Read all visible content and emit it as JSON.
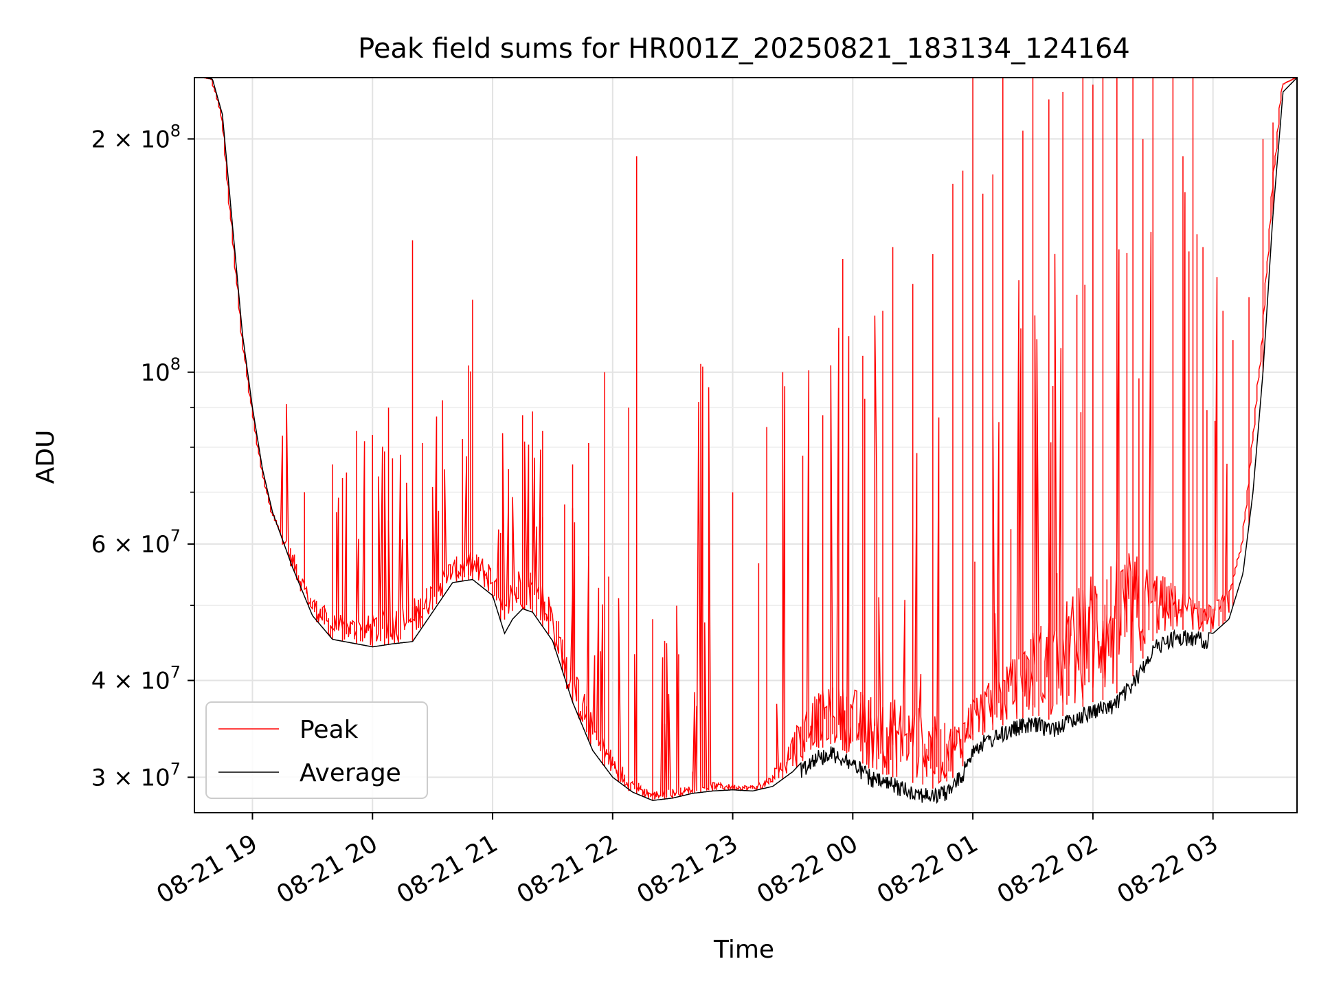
{
  "chart_data": {
    "type": "line",
    "title": "Peak field sums for HR001Z_20250821_183134_124164",
    "xlabel": "Time",
    "ylabel": "ADU",
    "yscale": "log",
    "grid": true,
    "legend_position": "lower-left",
    "xlim": [
      "2025-08-21 18:31",
      "2025-08-22 03:42"
    ],
    "ylim": [
      27000000,
      240000000
    ],
    "x_ticks": [
      {
        "value": "2025-08-21 19:00",
        "label": "08-21 19"
      },
      {
        "value": "2025-08-21 20:00",
        "label": "08-21 20"
      },
      {
        "value": "2025-08-21 21:00",
        "label": "08-21 21"
      },
      {
        "value": "2025-08-21 22:00",
        "label": "08-21 22"
      },
      {
        "value": "2025-08-21 23:00",
        "label": "08-21 23"
      },
      {
        "value": "2025-08-22 00:00",
        "label": "08-22 00"
      },
      {
        "value": "2025-08-22 01:00",
        "label": "08-22 01"
      },
      {
        "value": "2025-08-22 02:00",
        "label": "08-22 02"
      },
      {
        "value": "2025-08-22 03:00",
        "label": "08-22 03"
      }
    ],
    "y_major_ticks": [
      {
        "value": 30000000,
        "mantissa": "3",
        "exponent": "7"
      },
      {
        "value": 40000000,
        "mantissa": "4",
        "exponent": "7"
      },
      {
        "value": 60000000,
        "mantissa": "6",
        "exponent": "7"
      },
      {
        "value": 100000000,
        "mantissa": "",
        "exponent": "8"
      },
      {
        "value": 200000000,
        "mantissa": "2",
        "exponent": "8"
      }
    ],
    "y_minor_ticks": [
      50000000,
      70000000,
      80000000,
      90000000
    ],
    "series": [
      {
        "name": "Average",
        "color": "#000000",
        "x": [
          "2025-08-21 18:31",
          "2025-08-21 18:36",
          "2025-08-21 18:40",
          "2025-08-21 18:45",
          "2025-08-21 18:50",
          "2025-08-21 18:55",
          "2025-08-21 19:00",
          "2025-08-21 19:05",
          "2025-08-21 19:10",
          "2025-08-21 19:20",
          "2025-08-21 19:30",
          "2025-08-21 19:40",
          "2025-08-21 19:50",
          "2025-08-21 20:00",
          "2025-08-21 20:10",
          "2025-08-21 20:20",
          "2025-08-21 20:30",
          "2025-08-21 20:40",
          "2025-08-21 20:50",
          "2025-08-21 21:00",
          "2025-08-21 21:06",
          "2025-08-21 21:10",
          "2025-08-21 21:15",
          "2025-08-21 21:20",
          "2025-08-21 21:30",
          "2025-08-21 21:40",
          "2025-08-21 21:50",
          "2025-08-21 22:00",
          "2025-08-21 22:10",
          "2025-08-21 22:20",
          "2025-08-21 22:30",
          "2025-08-21 22:40",
          "2025-08-21 22:50",
          "2025-08-21 23:00",
          "2025-08-21 23:10",
          "2025-08-21 23:20",
          "2025-08-21 23:30",
          "2025-08-21 23:40",
          "2025-08-21 23:50",
          "2025-08-22 00:00",
          "2025-08-22 00:10",
          "2025-08-22 00:20",
          "2025-08-22 00:30",
          "2025-08-22 00:40",
          "2025-08-22 00:48",
          "2025-08-22 00:55",
          "2025-08-22 01:00",
          "2025-08-22 01:10",
          "2025-08-22 01:20",
          "2025-08-22 01:30",
          "2025-08-22 01:40",
          "2025-08-22 01:50",
          "2025-08-22 02:00",
          "2025-08-22 02:10",
          "2025-08-22 02:20",
          "2025-08-22 02:30",
          "2025-08-22 02:40",
          "2025-08-22 02:50",
          "2025-08-22 03:00",
          "2025-08-22 03:08",
          "2025-08-22 03:15",
          "2025-08-22 03:20",
          "2025-08-22 03:25",
          "2025-08-22 03:30",
          "2025-08-22 03:35",
          "2025-08-22 03:42"
        ],
        "values": [
          240000000,
          240000000,
          239000000,
          215000000,
          155000000,
          112000000,
          90000000,
          75000000,
          66000000,
          56000000,
          48500000,
          45200000,
          44700000,
          44200000,
          44600000,
          44900000,
          49000000,
          53500000,
          54000000,
          51500000,
          46000000,
          48000000,
          49500000,
          49000000,
          45000000,
          37500000,
          32500000,
          30000000,
          28700000,
          28000000,
          28200000,
          28600000,
          28800000,
          28900000,
          28800000,
          29200000,
          30500000,
          32500000,
          33000000,
          32000000,
          30500000,
          30000000,
          29500000,
          29000000,
          29500000,
          31000000,
          33500000,
          34500000,
          35500000,
          36000000,
          35500000,
          36500000,
          37500000,
          38000000,
          40500000,
          45000000,
          46500000,
          46500000,
          46000000,
          48000000,
          55000000,
          70000000,
          100000000,
          160000000,
          230000000,
          240000000
        ]
      },
      {
        "name": "Peak",
        "color": "#ff0000",
        "x": [
          "2025-08-21 18:31",
          "2025-08-21 18:36",
          "2025-08-21 18:40",
          "2025-08-21 18:45",
          "2025-08-21 18:50",
          "2025-08-21 18:55",
          "2025-08-21 19:00",
          "2025-08-21 19:05",
          "2025-08-21 19:10",
          "2025-08-21 19:20",
          "2025-08-21 19:30",
          "2025-08-21 19:40",
          "2025-08-21 19:50",
          "2025-08-21 20:00",
          "2025-08-21 20:10",
          "2025-08-21 20:20",
          "2025-08-21 20:30",
          "2025-08-21 20:40",
          "2025-08-21 20:50",
          "2025-08-21 21:00",
          "2025-08-21 21:06",
          "2025-08-21 21:10",
          "2025-08-21 21:15",
          "2025-08-21 21:20",
          "2025-08-21 21:30",
          "2025-08-21 21:40",
          "2025-08-21 21:50",
          "2025-08-21 22:00",
          "2025-08-21 22:10",
          "2025-08-21 22:20",
          "2025-08-21 22:30",
          "2025-08-21 22:40",
          "2025-08-21 22:50",
          "2025-08-21 23:00",
          "2025-08-21 23:10",
          "2025-08-21 23:20",
          "2025-08-21 23:30",
          "2025-08-21 23:40",
          "2025-08-21 23:50",
          "2025-08-22 00:00",
          "2025-08-22 00:10",
          "2025-08-22 00:20",
          "2025-08-22 00:30",
          "2025-08-22 00:40",
          "2025-08-22 00:48",
          "2025-08-22 00:55",
          "2025-08-22 01:00",
          "2025-08-22 01:10",
          "2025-08-22 01:20",
          "2025-08-22 01:30",
          "2025-08-22 01:40",
          "2025-08-22 01:50",
          "2025-08-22 02:00",
          "2025-08-22 02:10",
          "2025-08-22 02:20",
          "2025-08-22 02:30",
          "2025-08-22 02:40",
          "2025-08-22 02:50",
          "2025-08-22 03:00",
          "2025-08-22 03:08",
          "2025-08-22 03:15",
          "2025-08-22 03:20",
          "2025-08-22 03:25",
          "2025-08-22 03:30",
          "2025-08-22 03:35",
          "2025-08-22 03:42"
        ],
        "values": [
          240000000,
          240000000,
          239000000,
          215000000,
          155000000,
          112000000,
          90000000,
          75000000,
          66000000,
          58000000,
          50500000,
          47500000,
          47000000,
          47000000,
          48000000,
          48500000,
          52000000,
          56000000,
          57000000,
          55000000,
          48500000,
          52000000,
          54000000,
          53500000,
          49000000,
          40500000,
          35000000,
          31500000,
          29500000,
          28500000,
          28700000,
          29000000,
          29300000,
          29200000,
          29100000,
          29800000,
          33000000,
          36000000,
          37000000,
          36500000,
          35500000,
          35000000,
          34500000,
          33500000,
          33000000,
          34000000,
          36500000,
          38000000,
          40000000,
          42500000,
          44000000,
          46000000,
          49000000,
          50500000,
          52000000,
          52000000,
          51000000,
          49500000,
          48500000,
          51000000,
          60000000,
          80000000,
          110000000,
          170000000,
          235000000,
          240000000
        ],
        "spikes": [
          {
            "x": "2025-08-21 19:40",
            "y": 76000000
          },
          {
            "x": "2025-08-21 19:45",
            "y": 73000000
          },
          {
            "x": "2025-08-21 19:52",
            "y": 84000000
          },
          {
            "x": "2025-08-21 20:00",
            "y": 83000000
          },
          {
            "x": "2025-08-21 20:06",
            "y": 79000000
          },
          {
            "x": "2025-08-21 20:08",
            "y": 90000000
          },
          {
            "x": "2025-08-21 20:20",
            "y": 148000000
          },
          {
            "x": "2025-08-21 20:25",
            "y": 81000000
          },
          {
            "x": "2025-08-21 20:35",
            "y": 92000000
          },
          {
            "x": "2025-08-21 20:45",
            "y": 82000000
          },
          {
            "x": "2025-08-21 20:48",
            "y": 102000000
          },
          {
            "x": "2025-08-21 20:50",
            "y": 124000000
          },
          {
            "x": "2025-08-21 21:04",
            "y": 62000000
          },
          {
            "x": "2025-08-21 21:15",
            "y": 88000000
          },
          {
            "x": "2025-08-21 21:20",
            "y": 89000000
          },
          {
            "x": "2025-08-21 21:25",
            "y": 84000000
          },
          {
            "x": "2025-08-21 21:40",
            "y": 76000000
          },
          {
            "x": "2025-08-21 21:48",
            "y": 81000000
          },
          {
            "x": "2025-08-21 21:56",
            "y": 100000000
          },
          {
            "x": "2025-08-21 22:08",
            "y": 90000000
          },
          {
            "x": "2025-08-21 22:12",
            "y": 190000000
          },
          {
            "x": "2025-08-21 22:20",
            "y": 48000000
          },
          {
            "x": "2025-08-21 22:26",
            "y": 45000000
          },
          {
            "x": "2025-08-21 22:40",
            "y": 30500000
          },
          {
            "x": "2025-08-21 23:00",
            "y": 70000000
          },
          {
            "x": "2025-08-21 23:25",
            "y": 100000000
          },
          {
            "x": "2025-08-21 23:35",
            "y": 78000000
          },
          {
            "x": "2025-08-21 23:45",
            "y": 88000000
          },
          {
            "x": "2025-08-21 23:55",
            "y": 140000000
          },
          {
            "x": "2025-08-22 00:05",
            "y": 105000000
          },
          {
            "x": "2025-08-22 00:15",
            "y": 120000000
          },
          {
            "x": "2025-08-22 00:20",
            "y": 145000000
          },
          {
            "x": "2025-08-22 00:30",
            "y": 130000000
          },
          {
            "x": "2025-08-22 00:40",
            "y": 142000000
          },
          {
            "x": "2025-08-22 00:50",
            "y": 175000000
          },
          {
            "x": "2025-08-22 00:55",
            "y": 182000000
          },
          {
            "x": "2025-08-22 01:00",
            "y": 240000000
          },
          {
            "x": "2025-08-22 01:05",
            "y": 170000000
          },
          {
            "x": "2025-08-22 01:10",
            "y": 180000000
          },
          {
            "x": "2025-08-22 01:15",
            "y": 240000000
          },
          {
            "x": "2025-08-22 01:25",
            "y": 205000000
          },
          {
            "x": "2025-08-22 01:30",
            "y": 240000000
          },
          {
            "x": "2025-08-22 01:38",
            "y": 225000000
          },
          {
            "x": "2025-08-22 01:45",
            "y": 230000000
          },
          {
            "x": "2025-08-22 01:55",
            "y": 240000000
          },
          {
            "x": "2025-08-22 02:00",
            "y": 235000000
          },
          {
            "x": "2025-08-22 02:05",
            "y": 240000000
          },
          {
            "x": "2025-08-22 02:12",
            "y": 240000000
          },
          {
            "x": "2025-08-22 02:20",
            "y": 240000000
          },
          {
            "x": "2025-08-22 02:25",
            "y": 200000000
          },
          {
            "x": "2025-08-22 02:30",
            "y": 240000000
          },
          {
            "x": "2025-08-22 02:40",
            "y": 240000000
          },
          {
            "x": "2025-08-22 02:45",
            "y": 190000000
          },
          {
            "x": "2025-08-22 02:50",
            "y": 240000000
          },
          {
            "x": "2025-08-22 02:55",
            "y": 145000000
          },
          {
            "x": "2025-08-22 03:05",
            "y": 120000000
          },
          {
            "x": "2025-08-22 03:10",
            "y": 110000000
          },
          {
            "x": "2025-08-22 03:18",
            "y": 125000000
          },
          {
            "x": "2025-08-22 03:25",
            "y": 200000000
          },
          {
            "x": "2025-08-22 03:30",
            "y": 210000000
          }
        ]
      }
    ]
  }
}
